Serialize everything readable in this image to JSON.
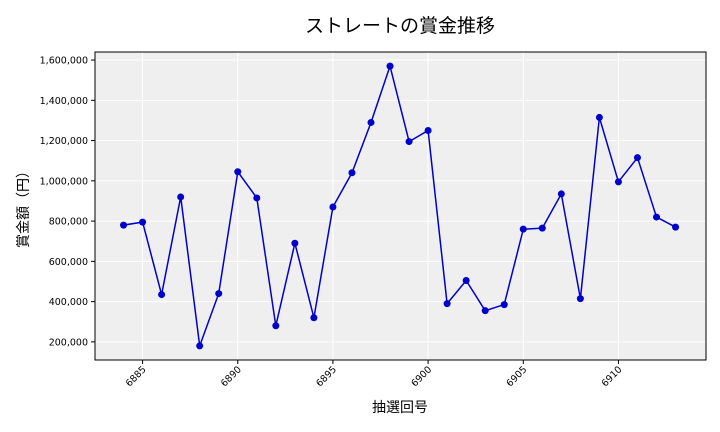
{
  "chart_data": {
    "type": "line",
    "title": "ストレートの賞金推移",
    "xlabel": "抽選回号",
    "ylabel": "賞金額（円）",
    "x": [
      6884,
      6885,
      6886,
      6887,
      6888,
      6889,
      6890,
      6891,
      6892,
      6893,
      6894,
      6895,
      6896,
      6897,
      6898,
      6899,
      6900,
      6901,
      6902,
      6903,
      6904,
      6905,
      6906,
      6907,
      6908,
      6909,
      6910,
      6911,
      6912,
      6913
    ],
    "series": [
      {
        "name": "ストレート",
        "color": "#0000cc",
        "marker": "circle",
        "values": [
          780000,
          795000,
          435000,
          920000,
          180000,
          440000,
          1045000,
          915000,
          280000,
          690000,
          320000,
          870000,
          1040000,
          1290000,
          1570000,
          1195000,
          1250000,
          390000,
          505000,
          355000,
          385000,
          760000,
          765000,
          935000,
          415000,
          1315000,
          995000,
          1115000,
          820000,
          770000
        ]
      }
    ],
    "xticks": [
      6885,
      6890,
      6895,
      6900,
      6905,
      6910
    ],
    "xtick_labels": [
      "6885",
      "6890",
      "6895",
      "6900",
      "6905",
      "6910"
    ],
    "yticks": [
      200000,
      400000,
      600000,
      800000,
      1000000,
      1200000,
      1400000,
      1600000
    ],
    "ytick_labels": [
      "200,000",
      "400,000",
      "600,000",
      "800,000",
      "1,000,000",
      "1,200,000",
      "1,400,000",
      "1,600,000"
    ],
    "xlim": [
      6882.5,
      6914.6
    ],
    "ylim": [
      110000,
      1640000
    ],
    "grid": true,
    "legend": "none",
    "background": "#efefef"
  }
}
